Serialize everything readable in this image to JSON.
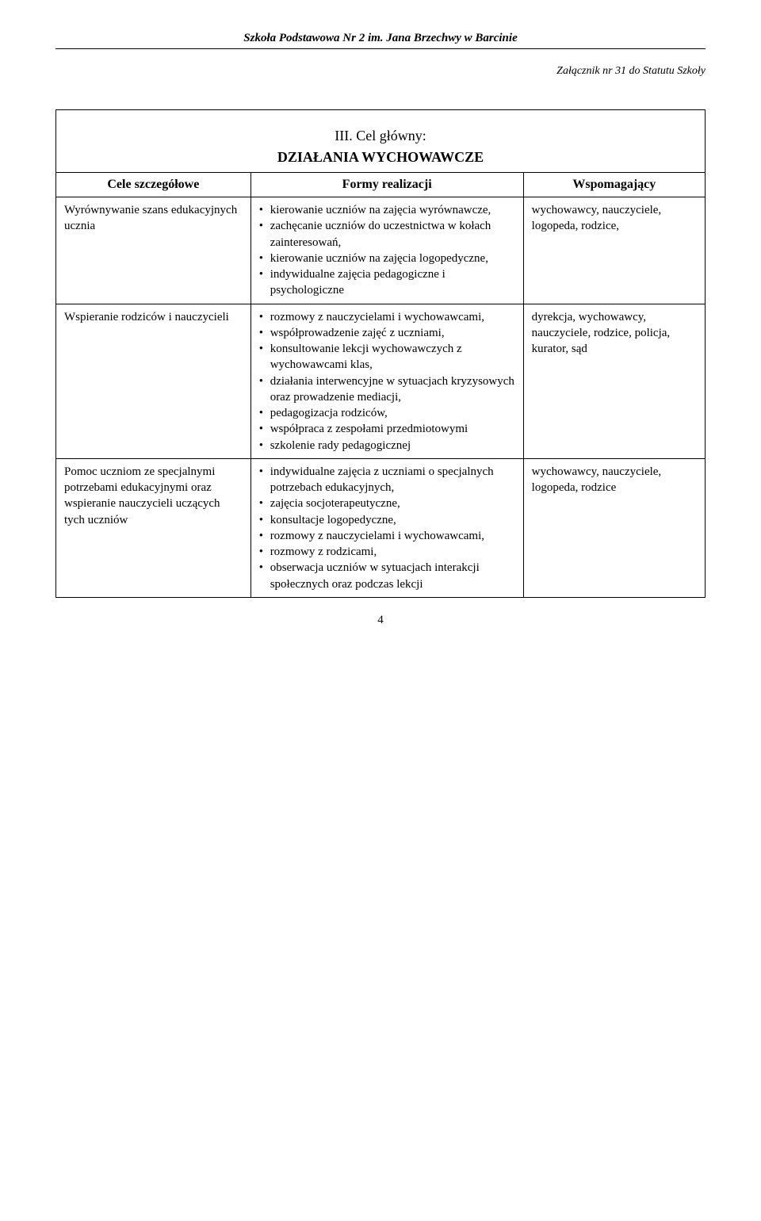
{
  "header": {
    "school": "Szkoła Podstawowa Nr 2 im. Jana Brzechwy w Barcinie",
    "attachment": "Załącznik nr 31 do Statutu Szkoły"
  },
  "main": {
    "roman_title": "III. Cel główny:",
    "subtitle": "DZIAŁANIA WYCHOWAWCZE",
    "columns": {
      "c1": "Cele szczegółowe",
      "c2": "Formy realizacji",
      "c3": "Wspomagający"
    },
    "rows": [
      {
        "goal": "Wyrównywanie szans edukacyjnych ucznia",
        "forms": [
          "kierowanie uczniów na zajęcia wyrównawcze,",
          "zachęcanie uczniów do uczestnictwa w kołach zainteresowań,",
          "kierowanie uczniów na zajęcia logopedyczne,",
          "indywidualne zajęcia pedagogiczne i psychologiczne"
        ],
        "support": "wychowawcy, nauczyciele, logopeda, rodzice,"
      },
      {
        "goal": "Wspieranie rodziców i nauczycieli",
        "forms": [
          "rozmowy z nauczycielami i wychowawcami,",
          "współprowadzenie zajęć z uczniami,",
          "konsultowanie lekcji wychowawczych z wychowawcami klas,",
          "działania interwencyjne w sytuacjach kryzysowych oraz prowadzenie mediacji,",
          "pedagogizacja rodziców,",
          "współpraca z zespołami przedmiotowymi",
          "szkolenie rady pedagogicznej"
        ],
        "support": "dyrekcja, wychowawcy, nauczyciele, rodzice, policja, kurator, sąd"
      },
      {
        "goal": "Pomoc uczniom ze specjalnymi potrzebami edukacyjnymi oraz wspieranie nauczycieli uczących tych uczniów",
        "forms": [
          "indywidualne zajęcia z uczniami o specjalnych potrzebach edukacyjnych,",
          "zajęcia socjoterapeutyczne,",
          "konsultacje logopedyczne,",
          "rozmowy z nauczycielami i wychowawcami,",
          "rozmowy z rodzicami,",
          "obserwacja uczniów w sytuacjach interakcji społecznych oraz podczas lekcji"
        ],
        "support": "wychowawcy, nauczyciele, logopeda, rodzice"
      }
    ]
  },
  "page_number": "4"
}
